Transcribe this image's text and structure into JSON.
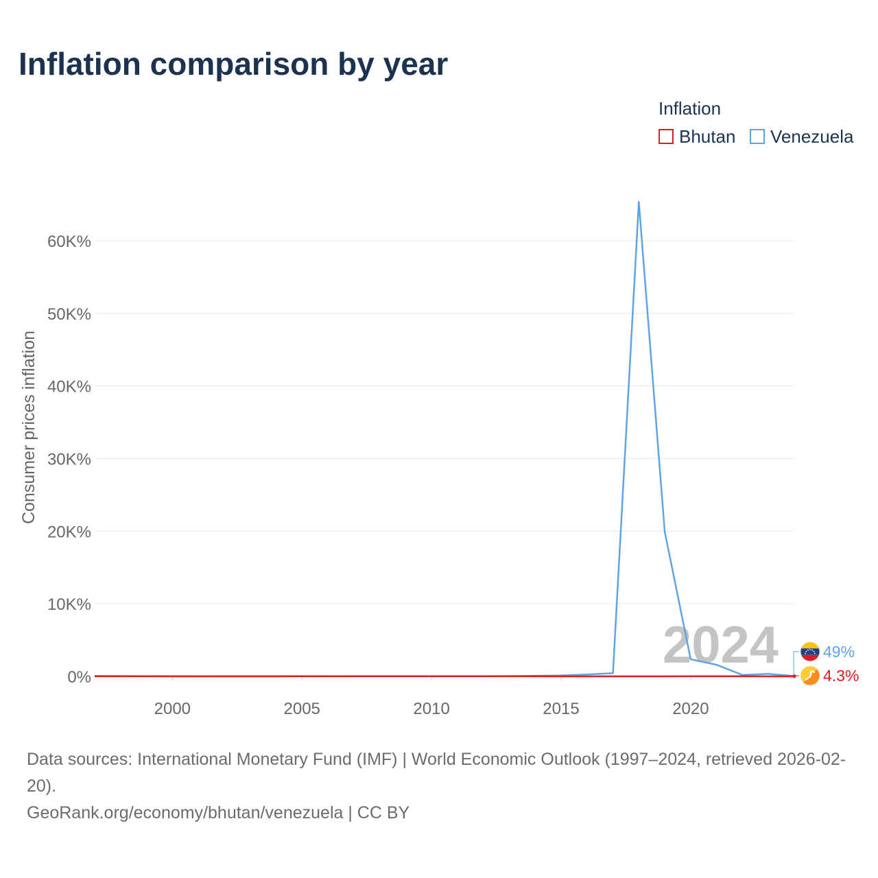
{
  "title": "Inflation comparison by year",
  "legend": {
    "heading": "Inflation",
    "items": [
      {
        "label": "Bhutan",
        "color": "#e31a1c"
      },
      {
        "label": "Venezuela",
        "color": "#5ea4e3"
      }
    ]
  },
  "footer": {
    "sources": "Data sources: International Monetary Fund (IMF) | World Economic Outlook (1997–2024, retrieved 2026-02-20).",
    "credit": "GeoRank.org/economy/bhutan/venezuela | CC BY"
  },
  "chart_data": {
    "type": "line",
    "title": "Inflation comparison by year",
    "xlabel": "",
    "ylabel": "Consumer prices inflation",
    "xlim": [
      1997,
      2024
    ],
    "ylim": [
      0,
      70000
    ],
    "xticks": [
      2000,
      2005,
      2010,
      2015,
      2020
    ],
    "xtick_labels": [
      "2000",
      "2005",
      "2010",
      "2015",
      "2020"
    ],
    "yticks": [
      0,
      10000,
      20000,
      30000,
      40000,
      50000,
      60000
    ],
    "ytick_labels": [
      "0%",
      "10K%",
      "20K%",
      "30K%",
      "40K%",
      "50K%",
      "60K%"
    ],
    "grid": true,
    "year_watermark": "2024",
    "x": [
      1997,
      1998,
      1999,
      2000,
      2001,
      2002,
      2003,
      2004,
      2005,
      2006,
      2007,
      2008,
      2009,
      2010,
      2011,
      2012,
      2013,
      2014,
      2015,
      2016,
      2017,
      2018,
      2019,
      2020,
      2021,
      2022,
      2023,
      2024
    ],
    "series": [
      {
        "name": "Bhutan",
        "color": "#e31a1c",
        "end_label": "4.3%",
        "values": [
          9,
          9,
          9.2,
          4,
          3.4,
          2.5,
          2.1,
          4.6,
          5.3,
          5,
          5.2,
          6.3,
          7.1,
          4.8,
          8.6,
          10.9,
          7,
          8.2,
          4.5,
          3.3,
          4.3,
          3.6,
          2.8,
          5.6,
          7.4,
          5.6,
          4.2,
          4.3
        ]
      },
      {
        "name": "Venezuela",
        "color": "#5ea4e3",
        "end_label": "49%",
        "values": [
          50,
          36,
          24,
          16,
          12,
          22,
          31,
          22,
          16,
          14,
          19,
          31,
          27,
          28,
          26,
          21,
          41,
          62,
          122,
          255,
          438,
          65374,
          19906,
          2355,
          1588,
          186,
          337,
          49
        ]
      }
    ]
  }
}
